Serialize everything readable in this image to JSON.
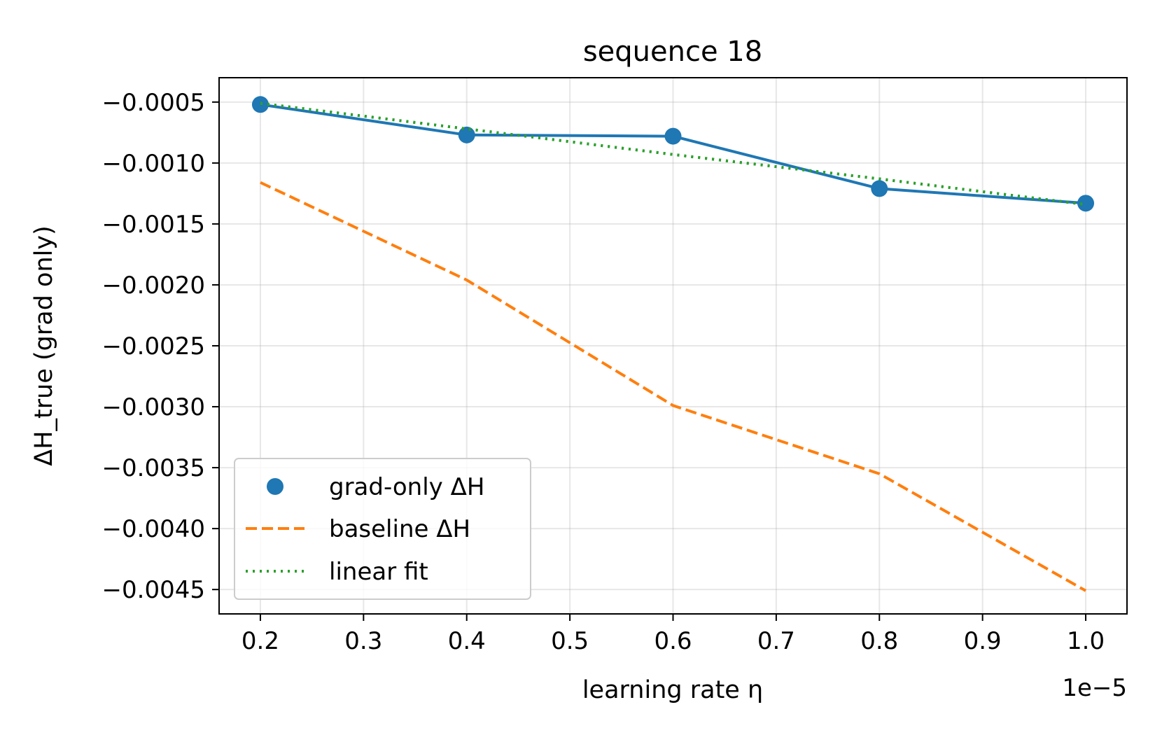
{
  "chart_data": {
    "type": "line",
    "title": "sequence 18",
    "xlabel": "learning rate η",
    "ylabel": "ΔH_true (grad only)",
    "x_offset_text": "1e−5",
    "x_scale": 1e-05,
    "xlim": [
      0.16,
      1.04
    ],
    "ylim": [
      -0.0047,
      -0.0003
    ],
    "x_ticks": [
      0.2,
      0.3,
      0.4,
      0.5,
      0.6,
      0.7,
      0.8,
      0.9,
      1.0
    ],
    "x_tick_labels": [
      "0.2",
      "0.3",
      "0.4",
      "0.5",
      "0.6",
      "0.7",
      "0.8",
      "0.9",
      "1.0"
    ],
    "y_ticks": [
      -0.0005,
      -0.001,
      -0.0015,
      -0.002,
      -0.0025,
      -0.003,
      -0.0035,
      -0.004,
      -0.0045
    ],
    "y_tick_labels": [
      "−0.0005",
      "−0.0010",
      "−0.0015",
      "−0.0020",
      "−0.0025",
      "−0.0030",
      "−0.0035",
      "−0.0040",
      "−0.0045"
    ],
    "grid": true,
    "legend_position": "lower-left",
    "x": [
      0.2,
      0.4,
      0.6,
      0.8,
      1.0
    ],
    "series": [
      {
        "name": "grad-only ΔH",
        "kind": "line+markers",
        "color": "#1f77b4",
        "values": [
          -0.00052,
          -0.00077,
          -0.00078,
          -0.00121,
          -0.00133
        ]
      },
      {
        "name": "baseline ΔH",
        "kind": "dashed",
        "color": "#ff7f0e",
        "values": [
          -0.00116,
          -0.00196,
          -0.00299,
          -0.00355,
          -0.00451
        ]
      },
      {
        "name": "linear fit",
        "kind": "dotted",
        "color": "#2ca02c",
        "values": [
          -0.00051,
          -0.00072,
          -0.00093,
          -0.00113,
          -0.00134
        ]
      }
    ]
  }
}
